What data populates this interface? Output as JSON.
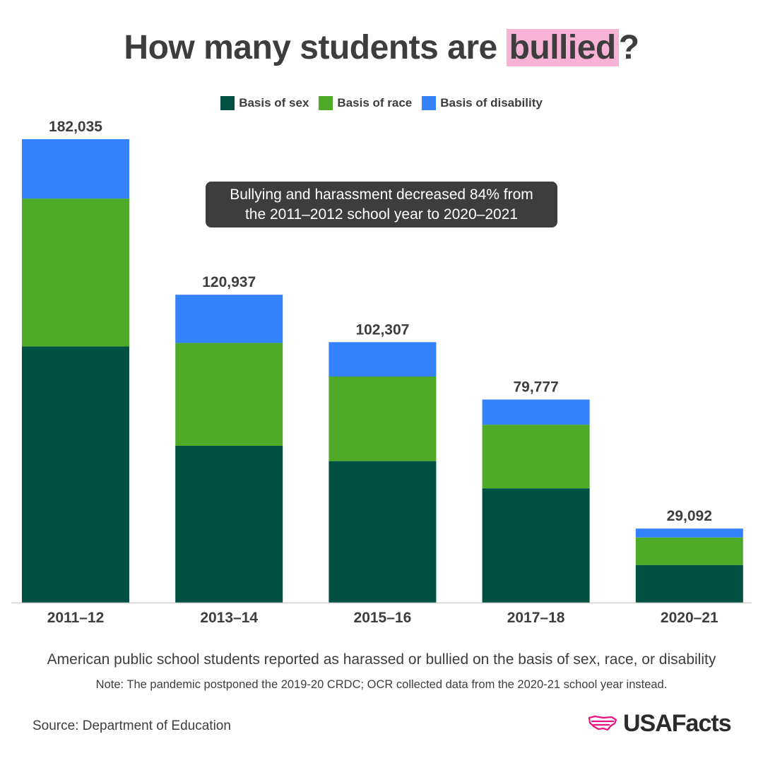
{
  "title": {
    "before": "How many students are ",
    "highlight": "bullied",
    "after": "?"
  },
  "legend": [
    {
      "label": "Basis of sex",
      "color": "#005141"
    },
    {
      "label": "Basis of race",
      "color": "#4faa28"
    },
    {
      "label": "Basis of disability",
      "color": "#3482fe"
    }
  ],
  "callout": {
    "line1": "Bullying and harassment decreased 84% from",
    "line2": "the 2011–2012 school year to 2020–2021"
  },
  "chart_data": {
    "type": "bar",
    "stacked": true,
    "categories": [
      "2011–12",
      "2013–14",
      "2015–16",
      "2017–18",
      "2020–21"
    ],
    "totals": [
      182035,
      120937,
      102307,
      79777,
      29092
    ],
    "total_labels": [
      "182,035",
      "120,937",
      "102,307",
      "79,777",
      "29,092"
    ],
    "series": [
      {
        "name": "Basis of sex",
        "color": "#005141",
        "values": [
          100600,
          61600,
          55600,
          44900,
          14800
        ]
      },
      {
        "name": "Basis of race",
        "color": "#4faa28",
        "values": [
          58100,
          40400,
          33200,
          25000,
          10800
        ]
      },
      {
        "name": "Basis of disability",
        "color": "#3482fe",
        "values": [
          23335,
          18937,
          13507,
          9877,
          3492
        ]
      }
    ],
    "ylim": [
      0,
      182035
    ],
    "grid": false
  },
  "caption": "American public school students reported as harassed or bullied on the basis of sex, race, or disability",
  "note": "Note: The pandemic postponed the 2019-20 CRDC; OCR collected data from the 2020-21 school year instead.",
  "source": "Source: Department of Education",
  "logo": {
    "text": "USAFacts",
    "icon": "usa-map-icon",
    "color": "#e8117f"
  }
}
